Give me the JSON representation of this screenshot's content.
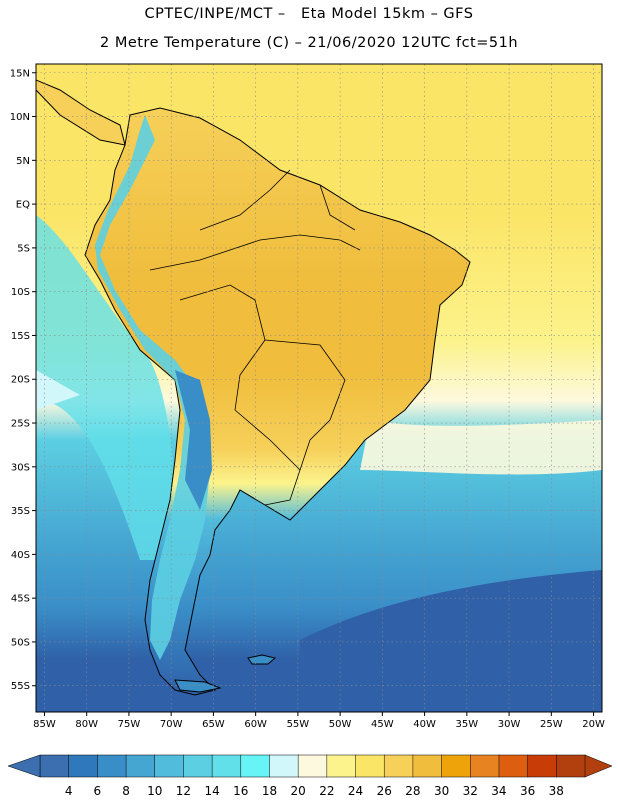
{
  "header": {
    "title_line1": "CPTEC/INPE/MCT –   Eta Model 15km – GFS",
    "title_line2": "2 Metre Temperature (C) – 21/06/2020 12UTC fct=51h"
  },
  "map": {
    "lon_range": [
      -86,
      -19
    ],
    "lat_range": [
      -58,
      16
    ],
    "lat_ticks": [
      {
        "label": "15N",
        "lat": 15
      },
      {
        "label": "10N",
        "lat": 10
      },
      {
        "label": "5N",
        "lat": 5
      },
      {
        "label": "EQ",
        "lat": 0
      },
      {
        "label": "5S",
        "lat": -5
      },
      {
        "label": "10S",
        "lat": -10
      },
      {
        "label": "15S",
        "lat": -15
      },
      {
        "label": "20S",
        "lat": -20
      },
      {
        "label": "25S",
        "lat": -25
      },
      {
        "label": "30S",
        "lat": -30
      },
      {
        "label": "35S",
        "lat": -35
      },
      {
        "label": "40S",
        "lat": -40
      },
      {
        "label": "45S",
        "lat": -45
      },
      {
        "label": "50S",
        "lat": -50
      },
      {
        "label": "55S",
        "lat": -55
      }
    ],
    "lon_ticks": [
      {
        "label": "85W",
        "lon": -85
      },
      {
        "label": "80W",
        "lon": -80
      },
      {
        "label": "75W",
        "lon": -75
      },
      {
        "label": "70W",
        "lon": -70
      },
      {
        "label": "65W",
        "lon": -65
      },
      {
        "label": "60W",
        "lon": -60
      },
      {
        "label": "55W",
        "lon": -55
      },
      {
        "label": "50W",
        "lon": -50
      },
      {
        "label": "45W",
        "lon": -45
      },
      {
        "label": "40W",
        "lon": -40
      },
      {
        "label": "35W",
        "lon": -35
      },
      {
        "label": "30W",
        "lon": -30
      },
      {
        "label": "25W",
        "lon": -25
      },
      {
        "label": "20W",
        "lon": -20
      }
    ]
  },
  "colorbar": {
    "labels": [
      "4",
      "6",
      "8",
      "10",
      "12",
      "14",
      "16",
      "18",
      "20",
      "22",
      "24",
      "26",
      "28",
      "30",
      "32",
      "34",
      "36",
      "38"
    ],
    "colors": [
      "#3b6fb0",
      "#2f78bb",
      "#3a8ec8",
      "#45a6d2",
      "#52bcdc",
      "#5ccfe2",
      "#62e0ea",
      "#66f4f7",
      "#d1f7fb",
      "#fdf9de",
      "#fcf38c",
      "#fbe567",
      "#f6d059",
      "#f0bd3c",
      "#eea30a",
      "#e78421",
      "#dd5e0f",
      "#c83c08",
      "#b2400f"
    ]
  }
}
